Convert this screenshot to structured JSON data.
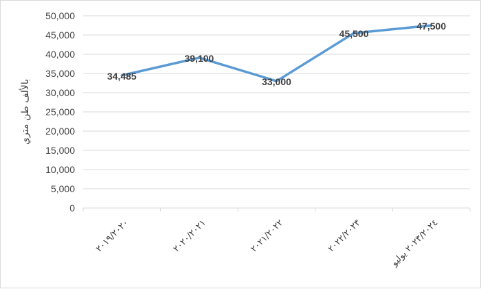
{
  "chart_data": {
    "type": "line",
    "categories": [
      "٢٠١٩/٢٠٢٠",
      "٢٠٢٠/٢٠٢١",
      "٢٠٢١/٢٠٢٢",
      "٢٠٢٢/٢٠٢٣",
      "٢٠٢٣/٢٠٢٤ يوليو"
    ],
    "series": [
      {
        "values": [
          34485,
          39100,
          33000,
          45500,
          47500
        ]
      }
    ],
    "data_labels": [
      "34,485",
      "39,100",
      "33,000",
      "45,500",
      "47,500"
    ],
    "ylabel": "بالألف طن متري",
    "ylim": [
      0,
      50000
    ],
    "yticks": [
      0,
      5000,
      10000,
      15000,
      20000,
      25000,
      30000,
      35000,
      40000,
      45000,
      50000
    ],
    "ytick_labels": [
      "0",
      "5,000",
      "10,000",
      "15,000",
      "20,000",
      "25,000",
      "30,000",
      "35,000",
      "40,000",
      "45,000",
      "50,000"
    ],
    "grid": "horizontal",
    "line_color": "#5b9bd5",
    "grid_color": "#d9d9d9"
  }
}
